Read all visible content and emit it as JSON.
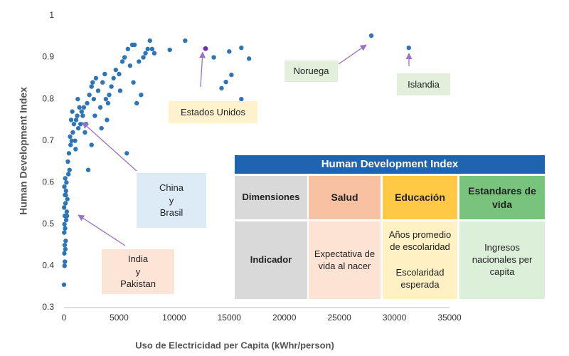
{
  "chart_data": {
    "type": "scatter",
    "xlabel": "Uso de Electricidad per Capita (kWhr/person)",
    "ylabel": "Human Development Index",
    "color": "#2e75b6",
    "xlim": [
      0,
      35000
    ],
    "xticks": [
      0,
      5000,
      10000,
      15000,
      20000,
      25000,
      30000,
      35000
    ],
    "ylim": [
      0.3,
      1
    ],
    "yticks": [
      0.3,
      0.4,
      0.5,
      0.6,
      0.7,
      0.8,
      0.9,
      1
    ],
    "grid": false,
    "x": [
      0,
      50,
      80,
      30,
      120,
      60,
      150,
      20,
      100,
      40,
      200,
      70,
      250,
      10,
      130,
      300,
      90,
      180,
      30,
      220,
      110,
      400,
      160,
      260,
      350,
      500,
      450,
      600,
      700,
      800,
      900,
      550,
      1000,
      1100,
      1200,
      1300,
      1400,
      1500,
      1600,
      1700,
      1800,
      1900,
      2000,
      750,
      1050,
      1250,
      650,
      2200,
      2500,
      2100,
      2300,
      2500,
      2700,
      2900,
      3100,
      3300,
      3500,
      3700,
      3900,
      4100,
      4300,
      4500,
      4700,
      2800,
      3400,
      4000,
      2600,
      3800,
      5000,
      5300,
      5500,
      5700,
      5800,
      6000,
      6200,
      6400,
      6600,
      6800,
      7000,
      7200,
      7400,
      7600,
      7800,
      8000,
      8200,
      6300,
      5100,
      9600,
      11000,
      13600,
      15000,
      16100,
      16800,
      15200,
      14700,
      14300,
      16100,
      27900,
      31300
    ],
    "values": [
      0.355,
      0.4,
      0.41,
      0.43,
      0.44,
      0.45,
      0.46,
      0.48,
      0.49,
      0.5,
      0.51,
      0.52,
      0.53,
      0.54,
      0.55,
      0.56,
      0.57,
      0.58,
      0.59,
      0.6,
      0.61,
      0.62,
      0.57,
      0.52,
      0.65,
      0.63,
      0.67,
      0.69,
      0.7,
      0.72,
      0.74,
      0.71,
      0.7,
      0.75,
      0.76,
      0.73,
      0.78,
      0.74,
      0.77,
      0.76,
      0.78,
      0.72,
      0.74,
      0.77,
      0.68,
      0.8,
      0.75,
      0.63,
      0.69,
      0.79,
      0.81,
      0.83,
      0.8,
      0.85,
      0.82,
      0.78,
      0.84,
      0.86,
      0.75,
      0.81,
      0.83,
      0.85,
      0.87,
      0.76,
      0.73,
      0.79,
      0.84,
      0.8,
      0.86,
      0.89,
      0.9,
      0.67,
      0.92,
      0.88,
      0.93,
      0.93,
      0.79,
      0.89,
      0.81,
      0.9,
      0.91,
      0.92,
      0.94,
      0.92,
      0.91,
      0.84,
      0.82,
      0.918,
      0.94,
      0.9,
      0.914,
      0.923,
      0.897,
      0.858,
      0.841,
      0.826,
      0.8,
      0.952,
      0.923
    ],
    "annotations": [
      {
        "text": "Estados Unidos",
        "x": 12850,
        "y": 0.921,
        "color": "#7030a0"
      },
      {
        "text": "Noruega"
      },
      {
        "text": "Islandia"
      },
      {
        "text": [
          "China",
          "y",
          "Brasil"
        ]
      },
      {
        "text": [
          "India",
          "y",
          "Pakistan"
        ]
      }
    ]
  },
  "table": {
    "title": "Human Development Index",
    "rows": [
      [
        "Dimensiones",
        "Salud",
        "Educación",
        "Estandares de vida"
      ],
      [
        "Indicador",
        "Expectativa de vida al nacer",
        [
          "Años promedio de escolaridad",
          "Escolaridad esperada"
        ],
        "Ingresos nacionales per capita"
      ]
    ]
  }
}
